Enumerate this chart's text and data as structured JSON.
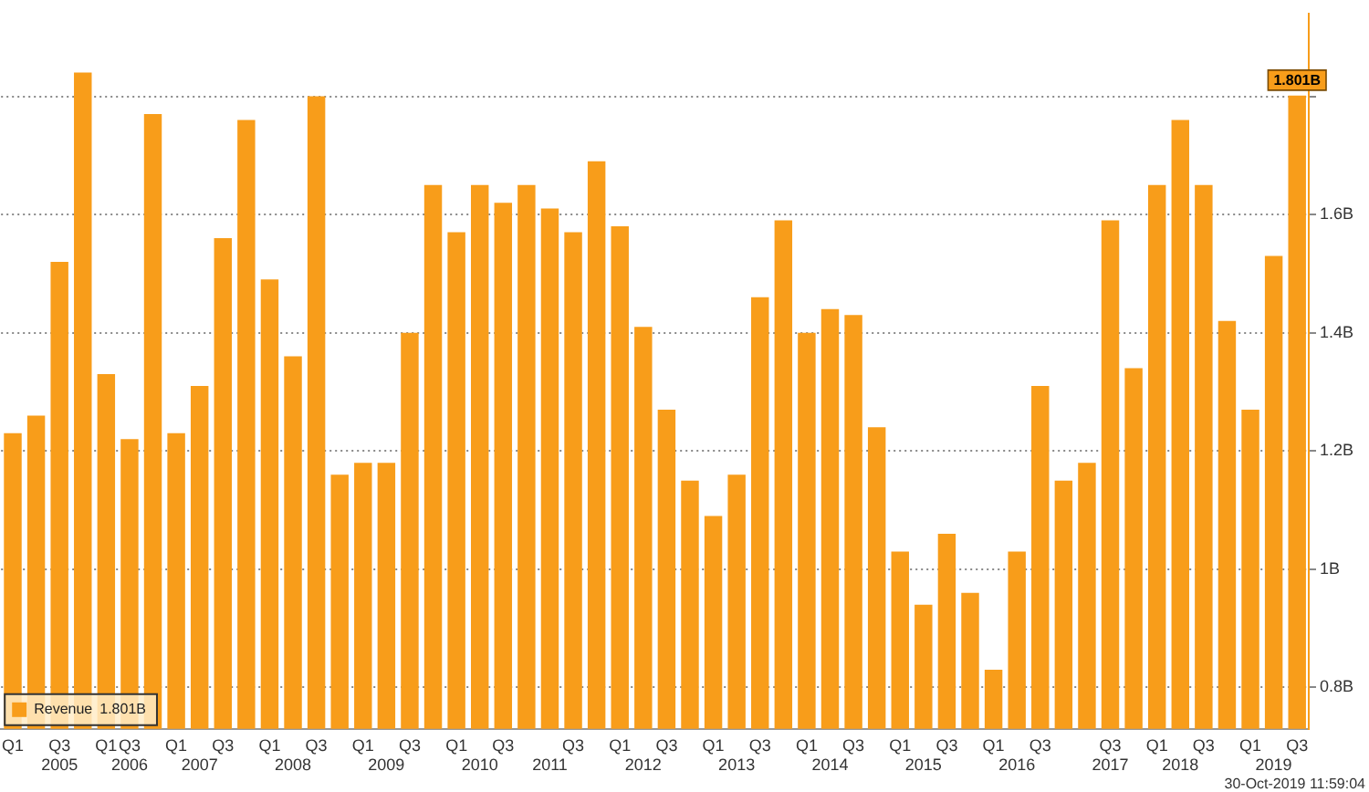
{
  "chart_data": {
    "type": "bar",
    "categories": [
      "Q1",
      null,
      "Q3\n2005",
      null,
      "Q1",
      "Q3\n2006",
      null,
      "Q1",
      "\n2007",
      "Q3",
      null,
      "Q1",
      "\n2008",
      "Q3",
      null,
      "Q1",
      "\n2009",
      "Q3",
      null,
      "Q1",
      "\n2010",
      "Q3",
      null,
      "\n2011",
      "Q3",
      null,
      "Q1",
      "\n2012",
      "Q3",
      null,
      "Q1",
      "\n2013",
      "Q3",
      null,
      "Q1",
      "\n2014",
      "Q3",
      null,
      "Q1",
      "\n2015",
      "Q3",
      null,
      "Q1",
      "\n2016",
      "Q3",
      null,
      null,
      "Q3\n2017",
      null,
      "Q1",
      "\n2018",
      "Q3",
      null,
      "Q1",
      "\n2019",
      "Q3"
    ],
    "series": [
      {
        "name": "Revenue",
        "color": "#f89d1a",
        "values": [
          1.23,
          1.26,
          1.52,
          1.84,
          1.33,
          1.22,
          1.77,
          1.23,
          1.31,
          1.56,
          1.76,
          1.49,
          1.36,
          1.8,
          1.16,
          1.18,
          1.18,
          1.4,
          1.65,
          1.57,
          1.65,
          1.62,
          1.65,
          1.61,
          1.57,
          1.69,
          1.58,
          1.41,
          1.27,
          1.15,
          1.09,
          1.16,
          1.46,
          1.59,
          1.4,
          1.44,
          1.43,
          1.24,
          1.03,
          0.94,
          1.06,
          0.96,
          0.83,
          1.03,
          1.31,
          1.15,
          1.18,
          1.59,
          1.34,
          1.65,
          1.76,
          1.65,
          1.42,
          1.27,
          1.53,
          1.801
        ],
        "value_labels": [
          null,
          null,
          null,
          null,
          null,
          null,
          null,
          null,
          null,
          null,
          null,
          null,
          null,
          null,
          null,
          null,
          null,
          null,
          null,
          null,
          null,
          null,
          null,
          null,
          null,
          null,
          null,
          null,
          null,
          null,
          null,
          null,
          null,
          null,
          null,
          null,
          null,
          null,
          null,
          null,
          null,
          null,
          null,
          null,
          null,
          null,
          null,
          null,
          null,
          null,
          null,
          null,
          null,
          null,
          null,
          "1.801B"
        ]
      }
    ],
    "ylim": [
      0.73,
      1.94
    ],
    "yticks": [
      {
        "value": 0.8,
        "label": "0.8B"
      },
      {
        "value": 1,
        "label": "1B"
      },
      {
        "value": 1.2,
        "label": "1.2B"
      },
      {
        "value": 1.4,
        "label": "1.4B"
      },
      {
        "value": 1.6,
        "label": "1.6B"
      },
      {
        "value": 1.8,
        "label": null
      }
    ],
    "grid": "y",
    "legend": "bottom left",
    "annotations": [
      "30-Oct-2019 11:59:04"
    ]
  }
}
